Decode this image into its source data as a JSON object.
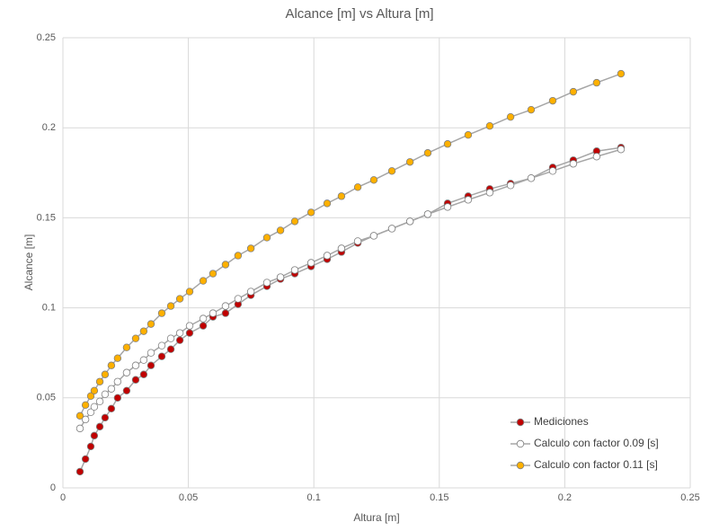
{
  "chart_data": {
    "type": "scatter",
    "title": "Alcance [m] vs Altura [m]",
    "x_label": "Altura [m]",
    "y_label": "Alcance [m]",
    "x": [
      0.0068,
      0.009,
      0.0111,
      0.0125,
      0.0147,
      0.0168,
      0.0193,
      0.0218,
      0.0254,
      0.029,
      0.0322,
      0.0351,
      0.0394,
      0.043,
      0.0466,
      0.0505,
      0.0559,
      0.0598,
      0.0648,
      0.0698,
      0.0749,
      0.0813,
      0.0867,
      0.0924,
      0.0989,
      0.1053,
      0.111,
      0.1175,
      0.1239,
      0.1311,
      0.1383,
      0.1454,
      0.1533,
      0.1615,
      0.1701,
      0.1784,
      0.1866,
      0.1952,
      0.2034,
      0.2127,
      0.2224
    ],
    "series": [
      {
        "name": "Mediciones",
        "color": "#c00000",
        "values": [
          0.009,
          0.016,
          0.023,
          0.029,
          0.034,
          0.039,
          0.044,
          0.05,
          0.054,
          0.06,
          0.063,
          0.068,
          0.073,
          0.077,
          0.082,
          0.086,
          0.09,
          0.095,
          0.097,
          0.102,
          0.107,
          0.112,
          0.116,
          0.119,
          0.123,
          0.127,
          0.131,
          0.136,
          0.14,
          0.144,
          0.148,
          0.152,
          0.158,
          0.162,
          0.166,
          0.169,
          0.172,
          0.178,
          0.182,
          0.187,
          0.189
        ]
      },
      {
        "name": "Calculo con factor 0.09 [s]",
        "color": "#ffffff",
        "values": [
          0.033,
          0.038,
          0.042,
          0.045,
          0.048,
          0.052,
          0.055,
          0.059,
          0.064,
          0.068,
          0.071,
          0.075,
          0.079,
          0.083,
          0.086,
          0.09,
          0.094,
          0.097,
          0.101,
          0.105,
          0.109,
          0.114,
          0.117,
          0.121,
          0.125,
          0.129,
          0.133,
          0.137,
          0.14,
          0.144,
          0.148,
          0.152,
          0.156,
          0.16,
          0.164,
          0.168,
          0.172,
          0.176,
          0.18,
          0.184,
          0.188
        ]
      },
      {
        "name": "Calculo con factor 0.11 [s]",
        "color": "#ffb000",
        "values": [
          0.04,
          0.046,
          0.051,
          0.054,
          0.059,
          0.063,
          0.068,
          0.072,
          0.078,
          0.083,
          0.087,
          0.091,
          0.097,
          0.101,
          0.105,
          0.109,
          0.115,
          0.119,
          0.124,
          0.129,
          0.133,
          0.139,
          0.143,
          0.148,
          0.153,
          0.158,
          0.162,
          0.167,
          0.171,
          0.176,
          0.181,
          0.186,
          0.191,
          0.196,
          0.201,
          0.206,
          0.21,
          0.215,
          0.22,
          0.225,
          0.23
        ]
      }
    ],
    "xlim": [
      0,
      0.25
    ],
    "xticks": [
      0,
      0.05,
      0.1,
      0.15,
      0.2,
      0.25
    ],
    "ylim": [
      0,
      0.25
    ],
    "yticks": [
      0,
      0.05,
      0.1,
      0.15,
      0.2,
      0.25
    ],
    "grid": true,
    "legend": "lower-right"
  }
}
